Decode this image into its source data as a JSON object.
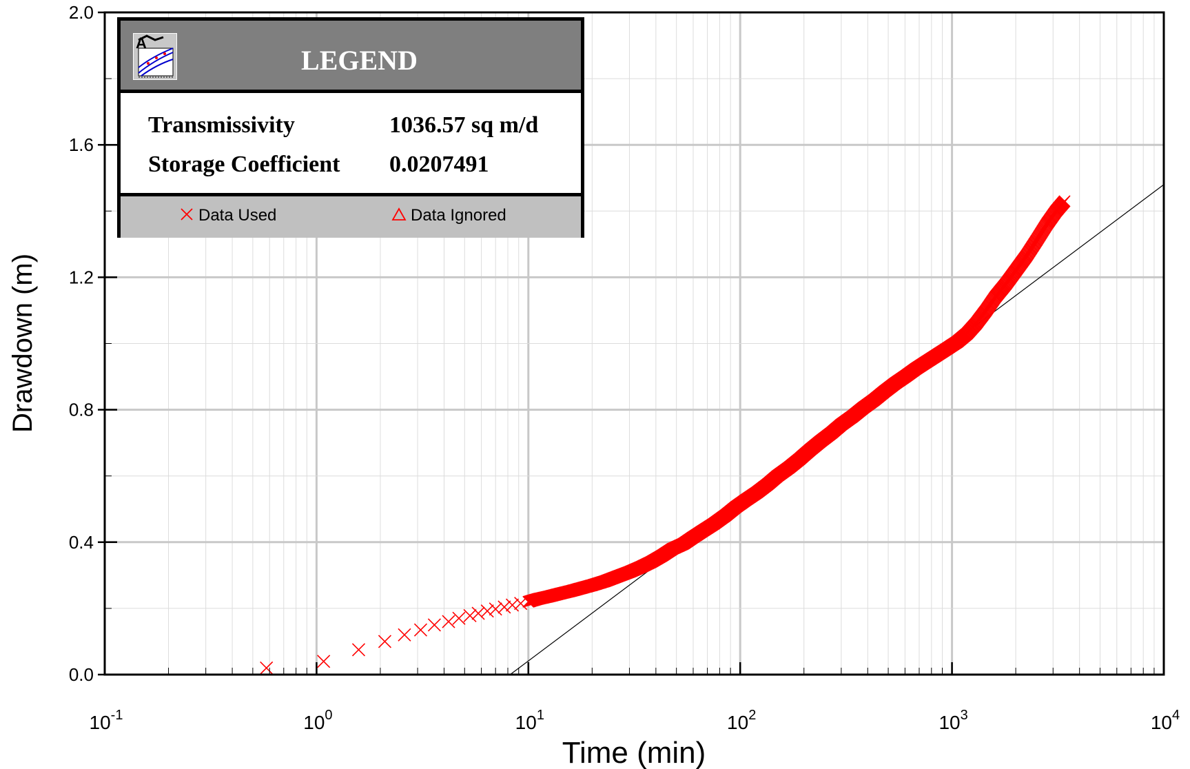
{
  "legend": {
    "title": "LEGEND",
    "params": [
      {
        "name": "Transmissivity",
        "value": "1036.57  sq m/d"
      },
      {
        "name": "Storage Coefficient",
        "value": "0.0207491"
      }
    ],
    "keys": [
      {
        "label": "Data Used",
        "color": "#ff0000"
      },
      {
        "label": "Data Ignored",
        "color": "#ff0000"
      }
    ]
  },
  "chart_data": {
    "type": "scatter",
    "xlabel": "Time (min)",
    "ylabel": "Drawdown (m)",
    "xscale": "log",
    "xlim": [
      0.1,
      10000
    ],
    "ylim": [
      0,
      2.0
    ],
    "x_ticks": [
      {
        "base": "10",
        "exp": "-1"
      },
      {
        "base": "10",
        "exp": "0"
      },
      {
        "base": "10",
        "exp": "1"
      },
      {
        "base": "10",
        "exp": "2"
      },
      {
        "base": "10",
        "exp": "3"
      },
      {
        "base": "10",
        "exp": "4"
      }
    ],
    "y_ticks": [
      "0.0",
      "0.4",
      "0.8",
      "1.2",
      "1.6",
      "2.0"
    ],
    "grid": true,
    "legend_position": "top-left",
    "marker_color": "#ff0000",
    "series": [
      {
        "name": "Data Used",
        "marker": "x",
        "points": [
          [
            0.58,
            0.02
          ],
          [
            1.08,
            0.04
          ],
          [
            1.58,
            0.075
          ],
          [
            2.1,
            0.1
          ],
          [
            2.6,
            0.12
          ],
          [
            3.1,
            0.135
          ],
          [
            3.6,
            0.15
          ],
          [
            4.2,
            0.16
          ],
          [
            4.7,
            0.17
          ],
          [
            5.3,
            0.178
          ],
          [
            5.8,
            0.185
          ],
          [
            6.4,
            0.192
          ],
          [
            7.0,
            0.198
          ],
          [
            7.7,
            0.204
          ],
          [
            8.4,
            0.21
          ],
          [
            9.2,
            0.215
          ],
          [
            10,
            0.22
          ],
          [
            11,
            0.228
          ],
          [
            12.5,
            0.236
          ],
          [
            14,
            0.244
          ],
          [
            16,
            0.253
          ],
          [
            18,
            0.262
          ],
          [
            20,
            0.27
          ],
          [
            23,
            0.282
          ],
          [
            26,
            0.295
          ],
          [
            30,
            0.31
          ],
          [
            34,
            0.325
          ],
          [
            38,
            0.34
          ],
          [
            43,
            0.36
          ],
          [
            48,
            0.38
          ],
          [
            54,
            0.395
          ],
          [
            60,
            0.415
          ],
          [
            67,
            0.435
          ],
          [
            75,
            0.455
          ],
          [
            85,
            0.48
          ],
          [
            95,
            0.505
          ],
          [
            105,
            0.525
          ],
          [
            120,
            0.55
          ],
          [
            135,
            0.575
          ],
          [
            150,
            0.6
          ],
          [
            170,
            0.625
          ],
          [
            190,
            0.65
          ],
          [
            215,
            0.68
          ],
          [
            240,
            0.705
          ],
          [
            270,
            0.73
          ],
          [
            300,
            0.755
          ],
          [
            340,
            0.78
          ],
          [
            380,
            0.805
          ],
          [
            430,
            0.83
          ],
          [
            480,
            0.855
          ],
          [
            540,
            0.88
          ],
          [
            600,
            0.9
          ],
          [
            680,
            0.925
          ],
          [
            760,
            0.945
          ],
          [
            850,
            0.965
          ],
          [
            950,
            0.985
          ],
          [
            1060,
            1.005
          ],
          [
            1180,
            1.03
          ],
          [
            1300,
            1.06
          ],
          [
            1450,
            1.1
          ],
          [
            1600,
            1.14
          ],
          [
            1800,
            1.18
          ],
          [
            2000,
            1.22
          ],
          [
            2250,
            1.265
          ],
          [
            2500,
            1.31
          ],
          [
            2800,
            1.36
          ],
          [
            3100,
            1.4
          ],
          [
            3400,
            1.43
          ]
        ]
      },
      {
        "name": "Data Ignored",
        "marker": "triangle",
        "points": []
      }
    ],
    "fit_line": {
      "x": [
        8.2,
        10000
      ],
      "y": [
        0.0,
        1.48
      ]
    }
  }
}
